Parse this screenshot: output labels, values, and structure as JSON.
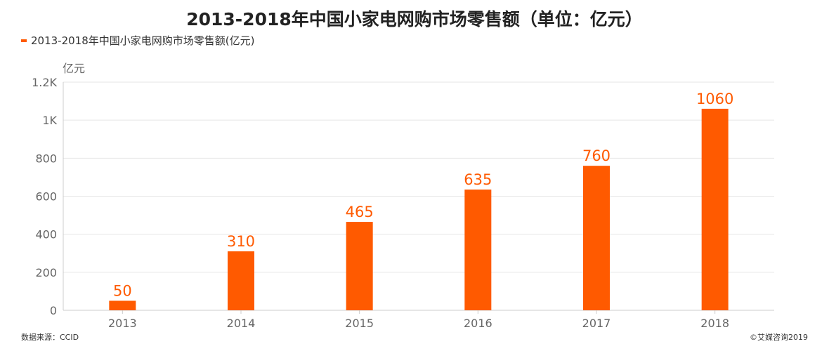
{
  "title": "2013-2018年中国小家电网购市场零售额（单位：亿元）",
  "legend_label": "2013-2018年中国小家电网购市场零售额(亿元)",
  "source": "数据来源：CCID",
  "copyright": "©艾媒咨询2019",
  "colors": {
    "bar": "#FF5A00",
    "label": "#FF5A00",
    "grid": "#e6e6e6",
    "axis": "#cccccc",
    "tick": "#666666"
  },
  "chart_data": {
    "type": "bar",
    "title": "2013-2018年中国小家电网购市场零售额（单位：亿元）",
    "xlabel": "",
    "ylabel": "亿元",
    "categories": [
      "2013",
      "2014",
      "2015",
      "2016",
      "2017",
      "2018"
    ],
    "values": [
      50,
      310,
      465,
      635,
      760,
      1060
    ],
    "data_labels": [
      "50",
      "310",
      "465",
      "635",
      "760",
      "1060"
    ],
    "ylim": [
      0,
      1200
    ],
    "yticks": [
      0,
      200,
      400,
      600,
      800,
      1000,
      1200
    ],
    "ytick_labels": [
      "0",
      "200",
      "400",
      "600",
      "800",
      "1K",
      "1.2K"
    ],
    "legend": [
      "2013-2018年中国小家电网购市场零售额(亿元)"
    ],
    "grid": true
  }
}
